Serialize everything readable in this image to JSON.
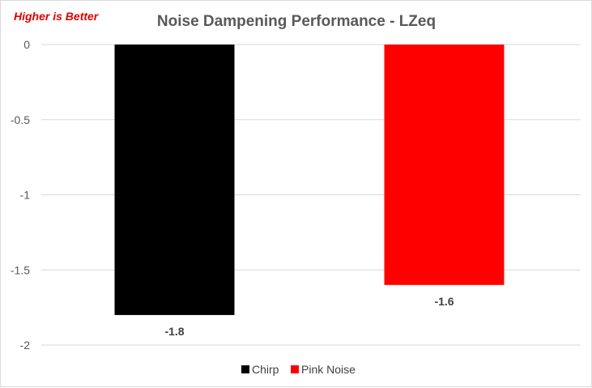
{
  "chart_data": {
    "type": "bar",
    "title": "Noise Dampening Performance - LZeq",
    "annotation": "Higher is Better",
    "xlabel": "",
    "ylabel": "",
    "ylim": [
      -2,
      0
    ],
    "yticks": [
      "0",
      "-0.5",
      "-1",
      "-1.5",
      "-2"
    ],
    "grid": true,
    "legend_position": "bottom",
    "series": [
      {
        "name": "Chirp",
        "values": [
          -1.8
        ],
        "color": "#000000",
        "label": "-1.8"
      },
      {
        "name": "Pink Noise",
        "values": [
          -1.6
        ],
        "color": "#ff0000",
        "label": "-1.6"
      }
    ]
  }
}
